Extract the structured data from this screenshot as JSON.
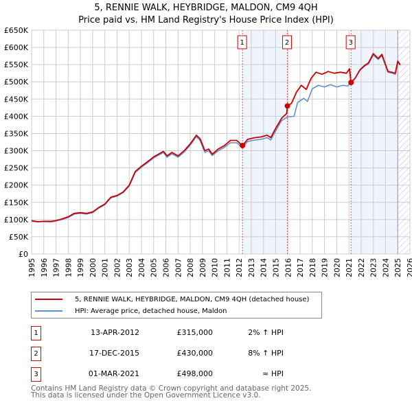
{
  "chart_data": {
    "type": "line",
    "title": "5, RENNIE WALK, HEYBRIDGE, MALDON, CM9 4QH",
    "subtitle": "Price paid vs. HM Land Registry's House Price Index (HPI)",
    "xlim": [
      1995,
      2026
    ],
    "ylim": [
      0,
      650000
    ],
    "x_ticks": [
      "1995",
      "1996",
      "1997",
      "1998",
      "1999",
      "2000",
      "2001",
      "2002",
      "2003",
      "2004",
      "2005",
      "2006",
      "2007",
      "2008",
      "2009",
      "2010",
      "2011",
      "2012",
      "2013",
      "2014",
      "2015",
      "2016",
      "2017",
      "2018",
      "2019",
      "2020",
      "2021",
      "2022",
      "2023",
      "2024",
      "2025",
      "2026"
    ],
    "y_ticks": [
      {
        "v": 0,
        "l": "£0"
      },
      {
        "v": 50000,
        "l": "£50K"
      },
      {
        "v": 100000,
        "l": "£100K"
      },
      {
        "v": 150000,
        "l": "£150K"
      },
      {
        "v": 200000,
        "l": "£200K"
      },
      {
        "v": 250000,
        "l": "£250K"
      },
      {
        "v": 300000,
        "l": "£300K"
      },
      {
        "v": 350000,
        "l": "£350K"
      },
      {
        "v": 400000,
        "l": "£400K"
      },
      {
        "v": 450000,
        "l": "£450K"
      },
      {
        "v": 500000,
        "l": "£500K"
      },
      {
        "v": 550000,
        "l": "£550K"
      },
      {
        "v": 600000,
        "l": "£600K"
      },
      {
        "v": 650000,
        "l": "£650K"
      }
    ],
    "grid": true,
    "shaded_ranges": [
      [
        2012.28,
        2015.96
      ],
      [
        2021.17,
        2025.0
      ]
    ],
    "hatched_from": 2025.0,
    "series": [
      {
        "name": "5, RENNIE WALK, HEYBRIDGE, MALDON, CM9 4QH (detached house)",
        "color": "#cc0000",
        "points": [
          [
            1995,
            97
          ],
          [
            1995.5,
            94
          ],
          [
            1996,
            95
          ],
          [
            1996.6,
            95
          ],
          [
            1997,
            97
          ],
          [
            1997.5,
            102
          ],
          [
            1998,
            108
          ],
          [
            1998.5,
            118
          ],
          [
            1999,
            120
          ],
          [
            1999.5,
            118
          ],
          [
            2000,
            122
          ],
          [
            2000.5,
            135
          ],
          [
            2001,
            145
          ],
          [
            2001.5,
            165
          ],
          [
            2002,
            170
          ],
          [
            2002.5,
            180
          ],
          [
            2003,
            200
          ],
          [
            2003.5,
            240
          ],
          [
            2004,
            255
          ],
          [
            2004.5,
            268
          ],
          [
            2005,
            282
          ],
          [
            2005.8,
            298
          ],
          [
            2006.1,
            285
          ],
          [
            2006.5,
            295
          ],
          [
            2007,
            285
          ],
          [
            2007.5,
            300
          ],
          [
            2008,
            320
          ],
          [
            2008.5,
            345
          ],
          [
            2008.8,
            335
          ],
          [
            2009.2,
            300
          ],
          [
            2009.5,
            305
          ],
          [
            2009.8,
            290
          ],
          [
            2010.3,
            305
          ],
          [
            2010.8,
            315
          ],
          [
            2011.3,
            330
          ],
          [
            2011.8,
            330
          ],
          [
            2012.28,
            315
          ],
          [
            2012.7,
            333
          ],
          [
            2013.3,
            338
          ],
          [
            2013.8,
            340
          ],
          [
            2014.3,
            345
          ],
          [
            2014.6,
            338
          ],
          [
            2015,
            365
          ],
          [
            2015.5,
            395
          ],
          [
            2015.9,
            408
          ],
          [
            2015.96,
            430
          ],
          [
            2016.3,
            438
          ],
          [
            2016.7,
            470
          ],
          [
            2017.1,
            490
          ],
          [
            2017.5,
            478
          ],
          [
            2017.9,
            510
          ],
          [
            2018.3,
            528
          ],
          [
            2018.8,
            522
          ],
          [
            2019.3,
            530
          ],
          [
            2019.8,
            525
          ],
          [
            2020.3,
            528
          ],
          [
            2020.8,
            525
          ],
          [
            2021.05,
            538
          ],
          [
            2021.17,
            498
          ],
          [
            2021.5,
            510
          ],
          [
            2021.9,
            535
          ],
          [
            2022.3,
            548
          ],
          [
            2022.6,
            555
          ],
          [
            2023.0,
            582
          ],
          [
            2023.4,
            568
          ],
          [
            2023.7,
            580
          ],
          [
            2024.0,
            550
          ],
          [
            2024.2,
            530
          ],
          [
            2024.5,
            528
          ],
          [
            2024.8,
            525
          ],
          [
            2025.0,
            560
          ],
          [
            2025.2,
            550
          ]
        ]
      },
      {
        "name": "HPI: Average price, detached house, Maldon",
        "color": "#5b8fd1",
        "points": [
          [
            1995,
            95
          ],
          [
            1995.5,
            93
          ],
          [
            1996,
            94
          ],
          [
            1996.6,
            93
          ],
          [
            1997,
            96
          ],
          [
            1997.5,
            100
          ],
          [
            1998,
            106
          ],
          [
            1998.5,
            116
          ],
          [
            1999,
            118
          ],
          [
            1999.5,
            116
          ],
          [
            2000,
            120
          ],
          [
            2000.5,
            133
          ],
          [
            2001,
            143
          ],
          [
            2001.5,
            163
          ],
          [
            2002,
            168
          ],
          [
            2002.5,
            178
          ],
          [
            2003,
            197
          ],
          [
            2003.5,
            237
          ],
          [
            2004,
            252
          ],
          [
            2004.5,
            265
          ],
          [
            2005,
            279
          ],
          [
            2005.8,
            295
          ],
          [
            2006.1,
            281
          ],
          [
            2006.5,
            291
          ],
          [
            2007,
            281
          ],
          [
            2007.5,
            296
          ],
          [
            2008,
            316
          ],
          [
            2008.5,
            341
          ],
          [
            2008.8,
            330
          ],
          [
            2009.2,
            295
          ],
          [
            2009.5,
            300
          ],
          [
            2009.8,
            286
          ],
          [
            2010.3,
            300
          ],
          [
            2010.8,
            310
          ],
          [
            2011.3,
            323
          ],
          [
            2011.8,
            323
          ],
          [
            2012.28,
            309
          ],
          [
            2012.7,
            327
          ],
          [
            2013.3,
            331
          ],
          [
            2013.8,
            333
          ],
          [
            2014.3,
            338
          ],
          [
            2014.6,
            331
          ],
          [
            2015,
            358
          ],
          [
            2015.5,
            388
          ],
          [
            2015.96,
            398
          ],
          [
            2016.5,
            400
          ],
          [
            2016.8,
            440
          ],
          [
            2017.3,
            452
          ],
          [
            2017.6,
            443
          ],
          [
            2018,
            480
          ],
          [
            2018.5,
            490
          ],
          [
            2019,
            485
          ],
          [
            2019.5,
            492
          ],
          [
            2020,
            485
          ],
          [
            2020.5,
            490
          ],
          [
            2020.9,
            488
          ],
          [
            2021.17,
            498
          ],
          [
            2021.5,
            510
          ],
          [
            2021.9,
            533
          ],
          [
            2022.3,
            546
          ],
          [
            2022.6,
            552
          ],
          [
            2023.0,
            578
          ],
          [
            2023.4,
            565
          ],
          [
            2023.7,
            576
          ],
          [
            2024.0,
            547
          ],
          [
            2024.2,
            528
          ],
          [
            2024.5,
            526
          ],
          [
            2024.8,
            522
          ],
          [
            2025.0,
            556
          ],
          [
            2025.2,
            548
          ]
        ]
      }
    ],
    "sales": [
      {
        "n": "1",
        "x": 2012.28,
        "value": 315000
      },
      {
        "n": "2",
        "x": 2015.96,
        "value": 430000
      },
      {
        "n": "3",
        "x": 2021.17,
        "value": 498000
      }
    ]
  },
  "title": "5, RENNIE WALK, HEYBRIDGE, MALDON, CM9 4QH",
  "subtitle": "Price paid vs. HM Land Registry's House Price Index (HPI)",
  "legend": {
    "property": "5, RENNIE WALK, HEYBRIDGE, MALDON, CM9 4QH (detached house)",
    "hpi": "HPI: Average price, detached house, Maldon"
  },
  "transactions": [
    {
      "n": "1",
      "date": "13-APR-2012",
      "price": "£315,000",
      "hpi": "2% ↑ HPI"
    },
    {
      "n": "2",
      "date": "17-DEC-2015",
      "price": "£430,000",
      "hpi": "8% ↑ HPI"
    },
    {
      "n": "3",
      "date": "01-MAR-2021",
      "price": "£498,000",
      "hpi": "≈ HPI"
    }
  ],
  "footer": {
    "line1": "Contains HM Land Registry data © Crown copyright and database right 2025.",
    "line2": "This data is licensed under the Open Government Licence v3.0."
  }
}
